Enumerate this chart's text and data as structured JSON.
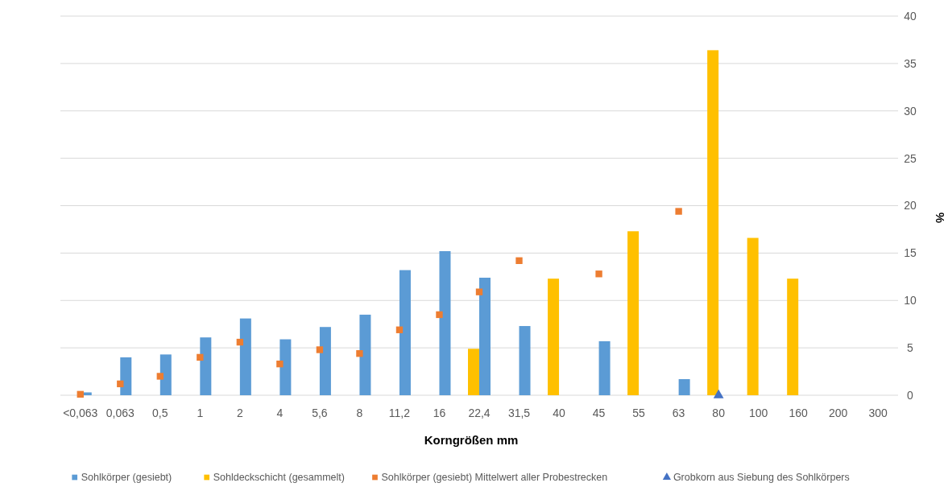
{
  "chart_data": {
    "type": "bar",
    "xlabel": "Korngrößen mm",
    "ylabel": "%",
    "categories": [
      "<0,063",
      "0,063",
      "0,5",
      "1",
      "2",
      "4",
      "5,6",
      "8",
      "11,2",
      "16",
      "22,4",
      "31,5",
      "40",
      "45",
      "55",
      "63",
      "80",
      "100",
      "160",
      "200",
      "300"
    ],
    "series": [
      {
        "name": "Sohlkörper (gesiebt)",
        "color": "#5b9bd5",
        "values": [
          0.3,
          4.0,
          4.3,
          6.1,
          8.1,
          5.9,
          7.2,
          8.5,
          13.2,
          15.2,
          12.4,
          7.3,
          null,
          5.7,
          null,
          1.7,
          null,
          null,
          null,
          null,
          null
        ]
      },
      {
        "name": "Sohldeckschicht (gesammelt)",
        "color": "#ffc000",
        "values": [
          null,
          null,
          null,
          null,
          null,
          null,
          null,
          null,
          null,
          null,
          4.9,
          null,
          12.3,
          null,
          17.3,
          null,
          36.4,
          16.6,
          12.3,
          null,
          null
        ]
      },
      {
        "name": "Sohlkörper (gesiebt) Mittelwert aller Probestrecken",
        "type": "scatter",
        "marker": "square",
        "color": "#ed7d31",
        "values": [
          0.1,
          1.2,
          2.0,
          4.0,
          5.6,
          3.3,
          4.8,
          4.4,
          6.9,
          8.5,
          10.9,
          14.2,
          null,
          12.8,
          null,
          19.4,
          null,
          null,
          null,
          null,
          null
        ]
      },
      {
        "name": "Grobkorn aus Siebung des Sohlkörpers",
        "type": "scatter",
        "marker": "triangle",
        "color": "#4472c4",
        "values": [
          null,
          null,
          null,
          null,
          null,
          null,
          null,
          null,
          null,
          null,
          null,
          null,
          null,
          null,
          null,
          null,
          0,
          null,
          null,
          null,
          null
        ]
      }
    ],
    "ylim": [
      0,
      40
    ],
    "yticks": [
      0,
      5,
      10,
      15,
      20,
      25,
      30,
      35,
      40
    ],
    "grid": "y",
    "legend": "bottom"
  }
}
